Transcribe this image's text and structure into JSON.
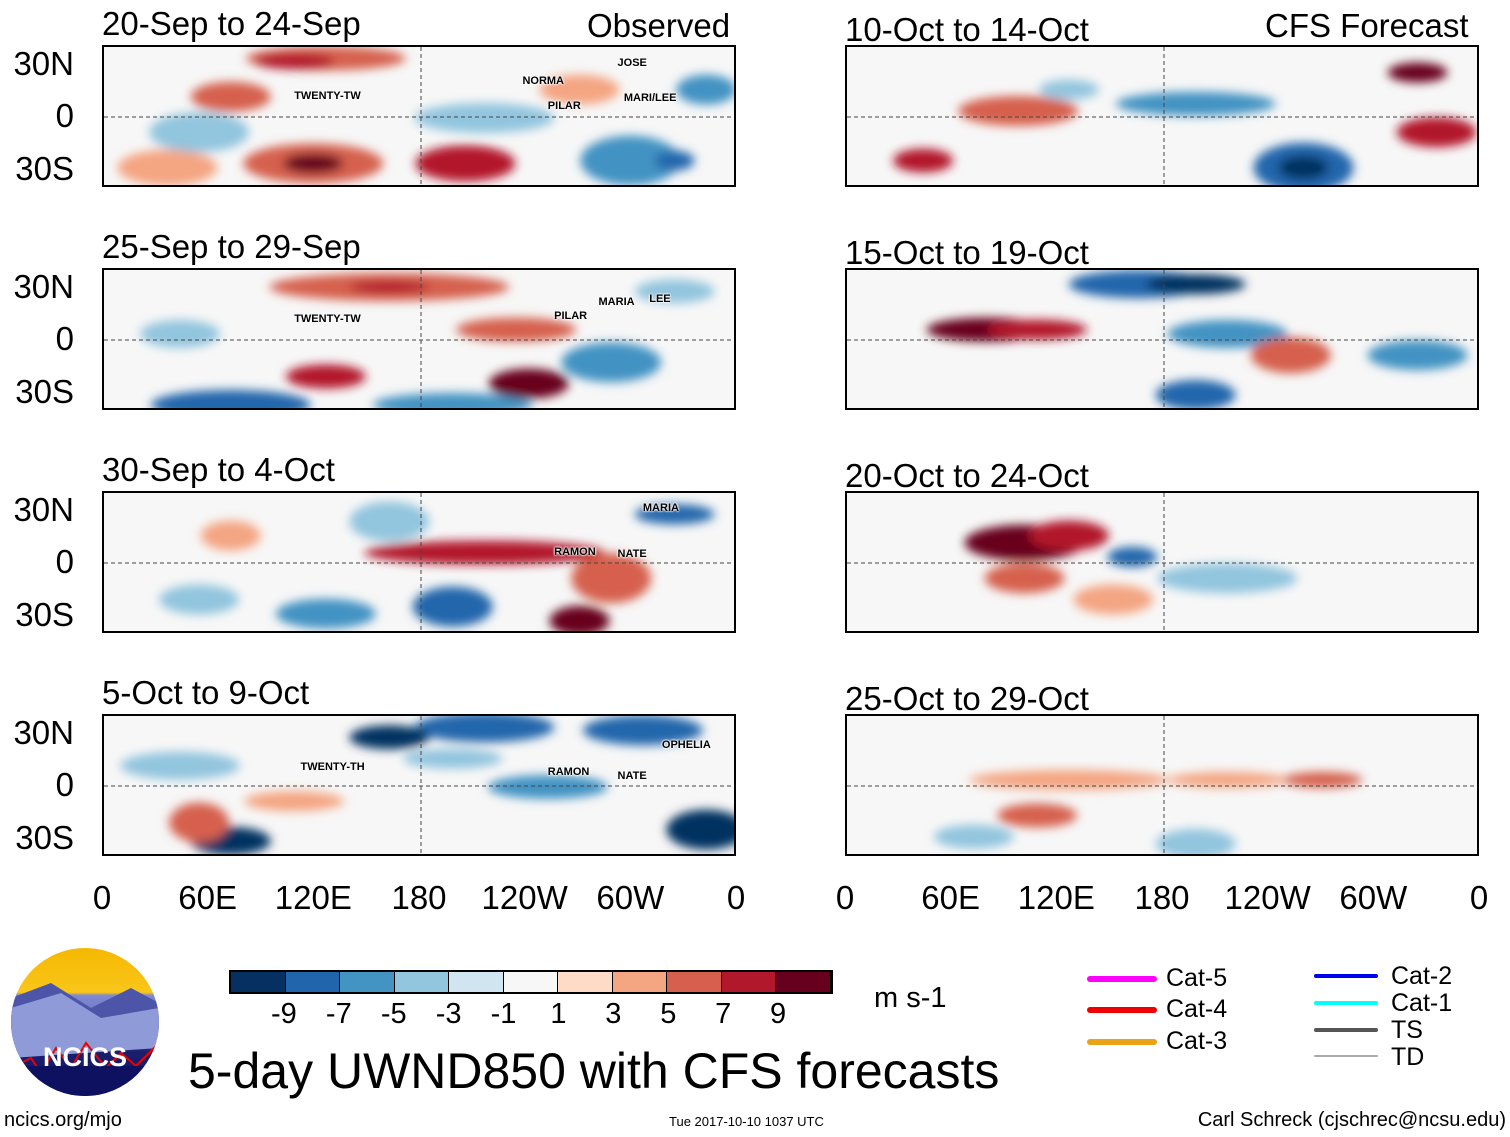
{
  "header": {
    "left_label": "Observed",
    "right_label": "CFS Forecast"
  },
  "chart_data": {
    "type": "heatmap",
    "title": "5-day UWND850 with CFS forecasts",
    "units": "m s-1",
    "colorbar": {
      "ticks": [
        "-9",
        "-7",
        "-5",
        "-3",
        "-1",
        "1",
        "3",
        "5",
        "7",
        "9"
      ],
      "colors": [
        "#053061",
        "#2166ac",
        "#4393c3",
        "#92c5de",
        "#d1e5f0",
        "#f7f7f7",
        "#fddbc7",
        "#f4a582",
        "#d6604d",
        "#b2182b",
        "#67001f"
      ]
    },
    "lat_ticks": [
      "30N",
      "0",
      "30S"
    ],
    "lon_ticks": [
      "0",
      "60E",
      "120E",
      "180",
      "120W",
      "60W",
      "0"
    ],
    "panels": [
      {
        "title": "20-Sep to 24-Sep",
        "kind": "observed",
        "storms": [
          {
            "name": "TWENTY-TW"
          },
          {
            "name": "NORMA"
          },
          {
            "name": "PILAR"
          },
          {
            "name": "JOSE"
          },
          {
            "name": "MARI/LEE"
          }
        ]
      },
      {
        "title": "25-Sep to 29-Sep",
        "kind": "observed",
        "storms": [
          {
            "name": "TWENTY-TW"
          },
          {
            "name": "PILAR"
          },
          {
            "name": "MARIA"
          },
          {
            "name": "LEE"
          }
        ]
      },
      {
        "title": "30-Sep to 4-Oct",
        "kind": "observed",
        "storms": [
          {
            "name": "MARIA"
          },
          {
            "name": "RAMON"
          },
          {
            "name": "NATE"
          }
        ]
      },
      {
        "title": "5-Oct to 9-Oct",
        "kind": "observed",
        "storms": [
          {
            "name": "TWENTY-TH"
          },
          {
            "name": "OPHELIA"
          },
          {
            "name": "RAMON"
          },
          {
            "name": "NATE"
          }
        ]
      },
      {
        "title": "10-Oct to 14-Oct",
        "kind": "forecast",
        "storms": []
      },
      {
        "title": "15-Oct to 19-Oct",
        "kind": "forecast",
        "storms": []
      },
      {
        "title": "20-Oct to 24-Oct",
        "kind": "forecast",
        "storms": []
      },
      {
        "title": "25-Oct to 29-Oct",
        "kind": "forecast",
        "storms": []
      }
    ],
    "legend": [
      {
        "label": "Cat-5",
        "color": "#ff00ff"
      },
      {
        "label": "Cat-4",
        "color": "#ee0000"
      },
      {
        "label": "Cat-3",
        "color": "#e8a317"
      },
      {
        "label": "Cat-2",
        "color": "#0000ee"
      },
      {
        "label": "Cat-1",
        "color": "#00ffff"
      },
      {
        "label": "TS",
        "color": "#555555"
      },
      {
        "label": "TD",
        "color": "#aaaaaa"
      }
    ]
  },
  "logo": {
    "text": "NCICS"
  },
  "footer": {
    "url": "ncics.org/mjo",
    "timestamp": "Tue 2017-10-10 1037 UTC",
    "author": "Carl Schreck (cjschrec@ncsu.edu)"
  }
}
